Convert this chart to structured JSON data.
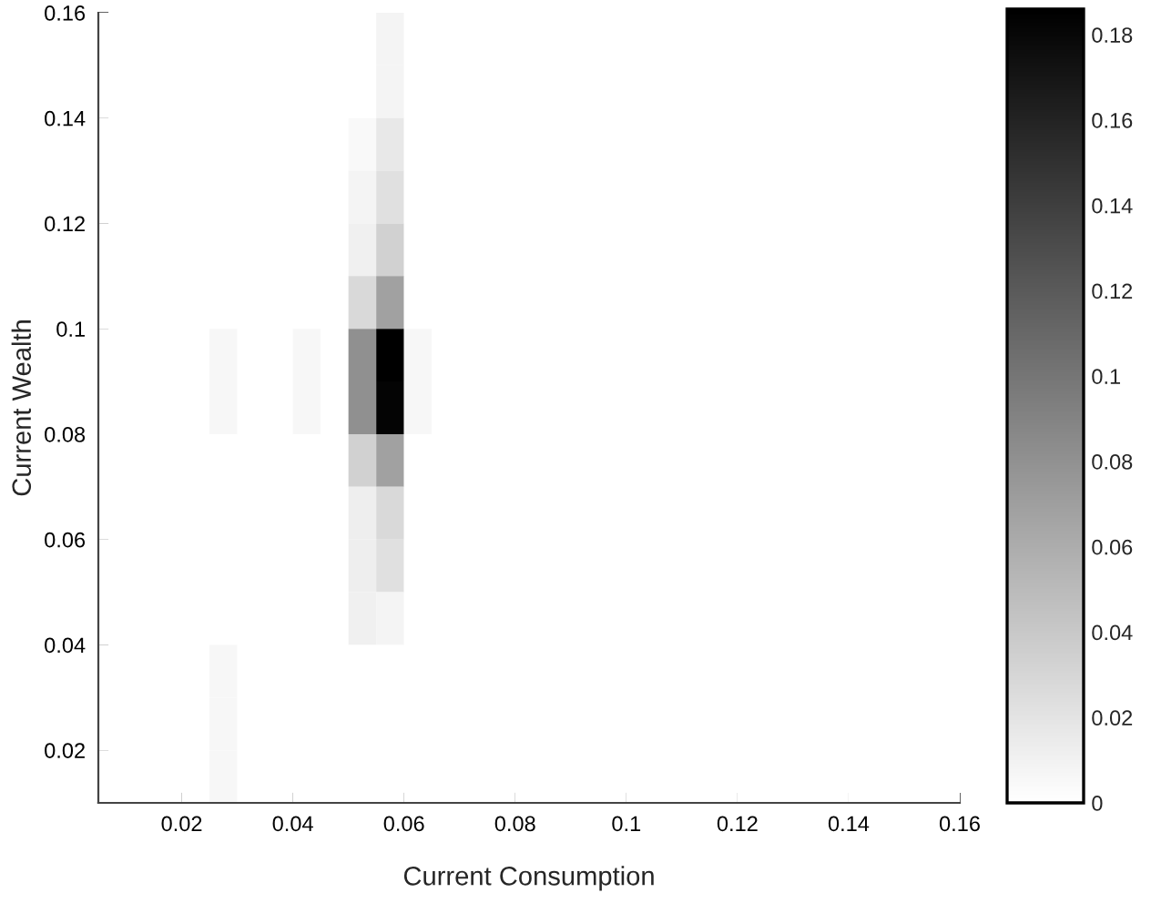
{
  "chart_data": {
    "type": "heatmap",
    "xlabel": "Current Consumption",
    "ylabel": "Current Wealth",
    "cells": [
      [
        0,
        0,
        0,
        0,
        0,
        0,
        0,
        0,
        0,
        0,
        0.008,
        0,
        0,
        0,
        0,
        0,
        0,
        0,
        0,
        0,
        0,
        0,
        0,
        0,
        0,
        0,
        0,
        0,
        0,
        0,
        0
      ],
      [
        0,
        0,
        0,
        0,
        0,
        0,
        0,
        0,
        0,
        0,
        0.008,
        0,
        0,
        0,
        0,
        0,
        0,
        0,
        0,
        0,
        0,
        0,
        0,
        0,
        0,
        0,
        0,
        0,
        0,
        0,
        0
      ],
      [
        0,
        0,
        0,
        0,
        0,
        0,
        0,
        0,
        0,
        0.005,
        0.017,
        0,
        0,
        0,
        0,
        0,
        0,
        0,
        0,
        0,
        0,
        0,
        0,
        0,
        0,
        0,
        0,
        0,
        0,
        0,
        0
      ],
      [
        0,
        0,
        0,
        0,
        0,
        0,
        0,
        0,
        0,
        0.008,
        0.023,
        0,
        0,
        0,
        0,
        0,
        0,
        0,
        0,
        0,
        0,
        0,
        0,
        0,
        0,
        0,
        0,
        0,
        0,
        0,
        0
      ],
      [
        0,
        0,
        0,
        0,
        0,
        0,
        0,
        0,
        0,
        0.011,
        0.034,
        0,
        0,
        0,
        0,
        0,
        0,
        0,
        0,
        0,
        0,
        0,
        0,
        0,
        0,
        0,
        0,
        0,
        0,
        0,
        0
      ],
      [
        0,
        0,
        0,
        0,
        0,
        0,
        0,
        0,
        0,
        0.028,
        0.069,
        0,
        0,
        0,
        0,
        0,
        0,
        0,
        0,
        0,
        0,
        0,
        0,
        0,
        0,
        0,
        0,
        0,
        0,
        0,
        0
      ],
      [
        0,
        0,
        0,
        0,
        0.006,
        0,
        0,
        0.006,
        0,
        0.081,
        0.186,
        0.006,
        0,
        0,
        0,
        0,
        0,
        0,
        0,
        0,
        0,
        0,
        0,
        0,
        0,
        0,
        0,
        0,
        0,
        0,
        0
      ],
      [
        0,
        0,
        0,
        0,
        0.006,
        0,
        0,
        0.006,
        0,
        0.081,
        0.183,
        0.006,
        0,
        0,
        0,
        0,
        0,
        0,
        0,
        0,
        0,
        0,
        0,
        0,
        0,
        0,
        0,
        0,
        0,
        0,
        0
      ],
      [
        0,
        0,
        0,
        0,
        0,
        0,
        0,
        0,
        0,
        0.034,
        0.069,
        0,
        0,
        0,
        0,
        0,
        0,
        0,
        0,
        0,
        0,
        0,
        0,
        0,
        0,
        0,
        0,
        0,
        0,
        0,
        0
      ],
      [
        0,
        0,
        0,
        0,
        0,
        0,
        0,
        0,
        0,
        0.013,
        0.028,
        0,
        0,
        0,
        0,
        0,
        0,
        0,
        0,
        0,
        0,
        0,
        0,
        0,
        0,
        0,
        0,
        0,
        0,
        0,
        0
      ],
      [
        0,
        0,
        0,
        0,
        0,
        0,
        0,
        0,
        0,
        0.013,
        0.023,
        0,
        0,
        0,
        0,
        0,
        0,
        0,
        0,
        0,
        0,
        0,
        0,
        0,
        0,
        0,
        0,
        0,
        0,
        0,
        0
      ],
      [
        0,
        0,
        0,
        0,
        0,
        0,
        0,
        0,
        0,
        0.011,
        0.008,
        0,
        0,
        0,
        0,
        0,
        0,
        0,
        0,
        0,
        0,
        0,
        0,
        0,
        0,
        0,
        0,
        0,
        0,
        0,
        0
      ],
      [
        0,
        0,
        0,
        0,
        0.006,
        0,
        0,
        0,
        0,
        0,
        0,
        0,
        0,
        0,
        0,
        0,
        0,
        0,
        0,
        0,
        0,
        0,
        0,
        0,
        0,
        0,
        0,
        0,
        0,
        0,
        0
      ],
      [
        0,
        0,
        0,
        0,
        0.006,
        0,
        0,
        0,
        0,
        0,
        0,
        0,
        0,
        0,
        0,
        0,
        0,
        0,
        0,
        0,
        0,
        0,
        0,
        0,
        0,
        0,
        0,
        0,
        0,
        0,
        0
      ],
      [
        0,
        0,
        0,
        0,
        0.006,
        0,
        0,
        0,
        0,
        0,
        0,
        0,
        0,
        0,
        0,
        0,
        0,
        0,
        0,
        0,
        0,
        0,
        0,
        0,
        0,
        0,
        0,
        0,
        0,
        0,
        0
      ]
    ],
    "xlim": [
      0.005,
      0.16
    ],
    "ylim": [
      0.01,
      0.16
    ],
    "xticks": [
      0.02,
      0.04,
      0.06,
      0.08,
      0.1,
      0.12,
      0.14,
      0.16
    ],
    "yticks": [
      0.02,
      0.04,
      0.06,
      0.08,
      0.1,
      0.12,
      0.14,
      0.16
    ],
    "clim": [
      0,
      0.186
    ],
    "cticks": [
      0,
      0.02,
      0.04,
      0.06,
      0.08,
      0.1,
      0.12,
      0.14,
      0.16,
      0.18
    ]
  }
}
